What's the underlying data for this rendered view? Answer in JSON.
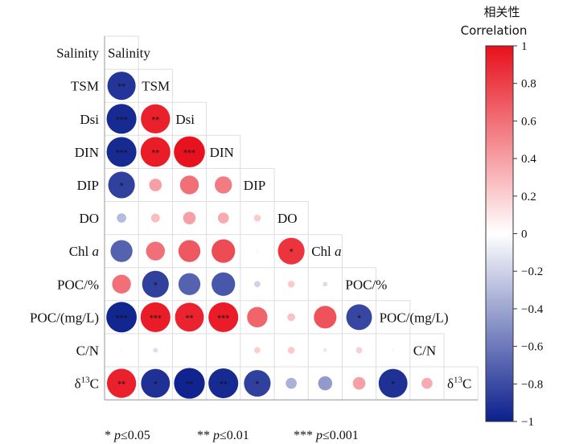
{
  "chart_data": {
    "type": "heatmap",
    "variables": [
      {
        "key": "salinity",
        "base": "Salinity"
      },
      {
        "key": "tsm",
        "base": "TSM"
      },
      {
        "key": "dsi",
        "base": "Dsi"
      },
      {
        "key": "din",
        "base": "DIN"
      },
      {
        "key": "dip",
        "base": "DIP"
      },
      {
        "key": "do",
        "base": "DO"
      },
      {
        "key": "chla",
        "base": "Chl ",
        "italic": "a"
      },
      {
        "key": "poc_pct",
        "base": "POC/%"
      },
      {
        "key": "poc_mgl",
        "base": "POC/(mg/L)"
      },
      {
        "key": "cn",
        "base": "C/N"
      },
      {
        "key": "d13c",
        "base": "δ",
        "sup": "13",
        "tail": "C"
      }
    ],
    "correlations": [
      [],
      [
        -0.9
      ],
      [
        -0.95,
        0.93
      ],
      [
        -0.95,
        0.95,
        0.99
      ],
      [
        -0.85,
        0.4,
        0.6,
        0.55
      ],
      [
        -0.3,
        0.28,
        0.4,
        0.35,
        0.22
      ],
      [
        -0.7,
        0.6,
        0.7,
        0.75,
        0.05,
        0.85
      ],
      [
        0.6,
        -0.85,
        -0.7,
        -0.75,
        -0.2,
        0.22,
        -0.15
      ],
      [
        -0.97,
        0.95,
        0.92,
        0.95,
        0.65,
        0.25,
        0.72,
        -0.82
      ],
      [
        0.05,
        -0.15,
        0.0,
        0.0,
        0.2,
        0.22,
        0.12,
        0.2,
        -0.05
      ],
      [
        0.93,
        -0.92,
        -0.98,
        -0.95,
        -0.85,
        -0.35,
        -0.45,
        0.4,
        -0.92,
        0.35
      ]
    ],
    "significance": [
      [],
      [
        "**"
      ],
      [
        "***",
        "**"
      ],
      [
        "***",
        "**",
        "***"
      ],
      [
        "*",
        "",
        "",
        ""
      ],
      [
        "",
        "",
        "",
        "",
        ""
      ],
      [
        "",
        "",
        "",
        "",
        "",
        "*"
      ],
      [
        "",
        "*",
        "",
        "",
        "",
        "",
        ""
      ],
      [
        "***",
        "***",
        "**",
        "***",
        "",
        "",
        "",
        "*"
      ],
      [
        "",
        "",
        "",
        "",
        "",
        "",
        "",
        "",
        ""
      ],
      [
        "**",
        "*",
        "**",
        "**",
        "*",
        "",
        "",
        "",
        "*",
        ""
      ]
    ],
    "colorbar": {
      "title_cn": "相关性",
      "title_en": "Correlation",
      "range": [
        -1,
        1
      ],
      "ticks": [
        "1",
        "0.8",
        "0.6",
        "0.4",
        "0.2",
        "0",
        "−0.2",
        "−0.4",
        "−0.6",
        "−0.8",
        "−1"
      ],
      "colors": {
        "negative": "#0b1f8c",
        "zero": "#ffffff",
        "positive": "#e8101c"
      }
    },
    "legend": [
      {
        "stars": "*",
        "p": "p",
        "rel": "≤0.05"
      },
      {
        "stars": "**",
        "p": "p",
        "rel": "≤0.01"
      },
      {
        "stars": "***",
        "p": "p",
        "rel": "≤0.001"
      }
    ]
  }
}
